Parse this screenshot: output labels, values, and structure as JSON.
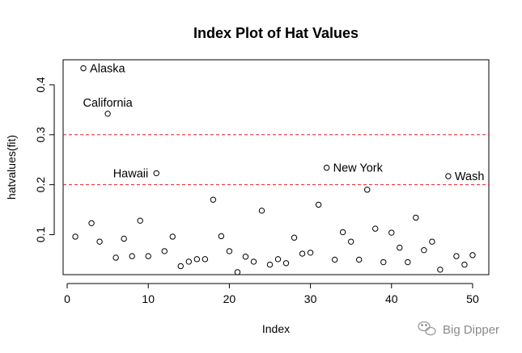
{
  "chart_data": {
    "type": "scatter",
    "title": "Index Plot of Hat Values",
    "xlabel": "Index",
    "ylabel": "hatvalues(fit)",
    "xlim": [
      -0.5,
      52
    ],
    "ylim": [
      0.02,
      0.45
    ],
    "xticks": [
      0,
      10,
      20,
      30,
      40,
      50
    ],
    "yticks": [
      0.1,
      0.2,
      0.3,
      0.4
    ],
    "xtick_labels": [
      "0",
      "10",
      "20",
      "30",
      "40",
      "50"
    ],
    "ytick_labels": [
      "0.1",
      "0.2",
      "0.3",
      "0.4"
    ],
    "grid": false,
    "marker": "open-circle",
    "x": [
      1,
      2,
      3,
      4,
      5,
      6,
      7,
      8,
      9,
      10,
      11,
      12,
      13,
      14,
      15,
      16,
      17,
      18,
      19,
      20,
      21,
      22,
      23,
      24,
      25,
      26,
      27,
      28,
      29,
      30,
      31,
      32,
      33,
      34,
      35,
      36,
      37,
      38,
      39,
      40,
      41,
      42,
      43,
      44,
      45,
      46,
      47,
      48,
      49,
      50
    ],
    "y": [
      0.096,
      0.433,
      0.123,
      0.086,
      0.342,
      0.054,
      0.092,
      0.057,
      0.128,
      0.057,
      0.223,
      0.067,
      0.096,
      0.037,
      0.046,
      0.051,
      0.051,
      0.17,
      0.097,
      0.067,
      0.025,
      0.056,
      0.046,
      0.148,
      0.04,
      0.051,
      0.043,
      0.094,
      0.062,
      0.064,
      0.16,
      0.234,
      0.05,
      0.105,
      0.086,
      0.05,
      0.19,
      0.112,
      0.045,
      0.104,
      0.074,
      0.045,
      0.134,
      0.069,
      0.086,
      0.03,
      0.217,
      0.057,
      0.04,
      0.059
    ],
    "reference_lines": [
      {
        "y": 0.2,
        "style": "dashed",
        "color": "#e8202a"
      },
      {
        "y": 0.3,
        "style": "dashed",
        "color": "#e8202a"
      }
    ],
    "annotations": [
      {
        "label": "Alaska",
        "x": 2,
        "y": 0.433,
        "pos": "right"
      },
      {
        "label": "California",
        "x": 5,
        "y": 0.342,
        "pos": "above"
      },
      {
        "label": "Hawaii",
        "x": 11,
        "y": 0.223,
        "pos": "left"
      },
      {
        "label": "New York",
        "x": 32,
        "y": 0.234,
        "pos": "right"
      },
      {
        "label": "Wash",
        "x": 47,
        "y": 0.217,
        "pos": "right"
      }
    ]
  },
  "watermark": {
    "text": "Big Dipper",
    "icon": "wechat-icon"
  },
  "colors": {
    "points": "#000000",
    "reference_line": "#e8202a",
    "watermark": "#8a8a8a"
  }
}
